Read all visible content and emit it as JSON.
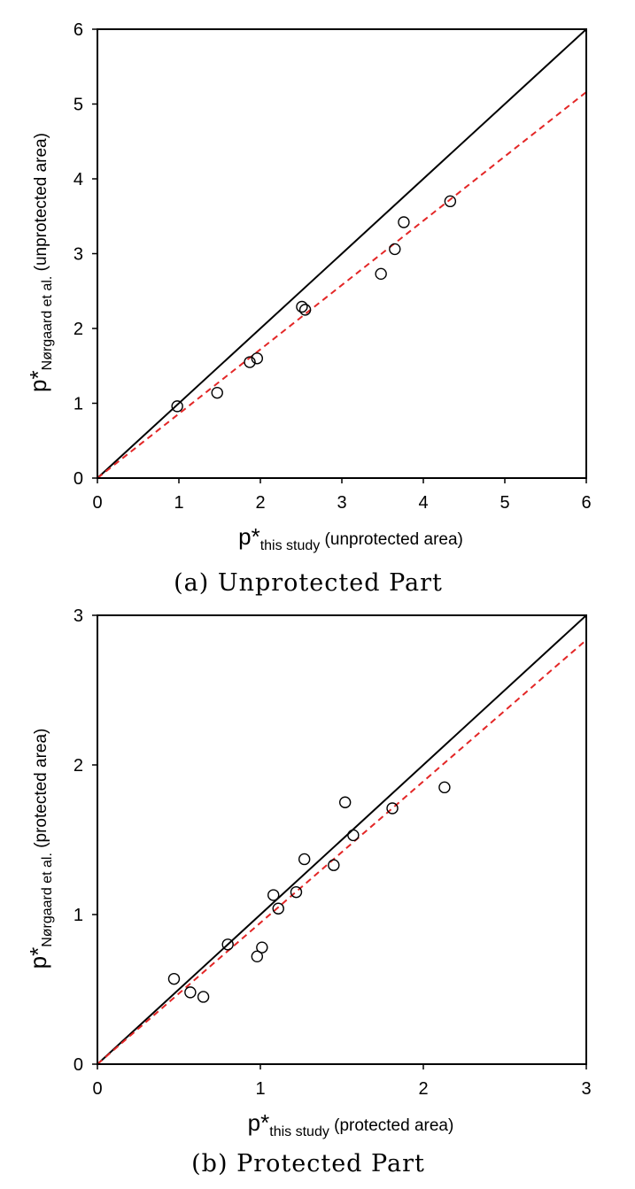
{
  "chart_data": [
    {
      "type": "scatter",
      "caption": "(a) Unprotected Part",
      "xlabel": {
        "main": "p*",
        "sub": "this study",
        "suffix": " (unprotected area)"
      },
      "ylabel": {
        "main": "p*",
        "sub": "Nørgaard et al.",
        "suffix": " (unprotected area)"
      },
      "xlim": [
        0,
        6
      ],
      "ylim": [
        0,
        6
      ],
      "xticks": [
        "0",
        "1",
        "2",
        "3",
        "4",
        "5",
        "6"
      ],
      "yticks": [
        "0",
        "1",
        "2",
        "3",
        "4",
        "5",
        "6"
      ],
      "grid": false,
      "points": [
        [
          0.98,
          0.96
        ],
        [
          1.47,
          1.14
        ],
        [
          1.87,
          1.55
        ],
        [
          1.96,
          1.6
        ],
        [
          2.51,
          2.29
        ],
        [
          2.55,
          2.25
        ],
        [
          3.48,
          2.73
        ],
        [
          3.65,
          3.06
        ],
        [
          3.76,
          3.42
        ],
        [
          4.33,
          3.7
        ]
      ],
      "lines": [
        {
          "name": "line of equality",
          "slope": 1.0,
          "style": "solid",
          "color": "#000000"
        },
        {
          "name": "fit",
          "slope": 0.86,
          "style": "dashed",
          "color": "#e32626"
        }
      ]
    },
    {
      "type": "scatter",
      "caption": "(b) Protected Part",
      "xlabel": {
        "main": "p*",
        "sub": "this study",
        "suffix": " (protected area)"
      },
      "ylabel": {
        "main": "p*",
        "sub": "Nørgaard et al.",
        "suffix": " (protected area)"
      },
      "xlim": [
        0,
        3
      ],
      "ylim": [
        0,
        3
      ],
      "xticks": [
        "0",
        "1",
        "2",
        "3"
      ],
      "yticks": [
        "0",
        "1",
        "2",
        "3"
      ],
      "grid": false,
      "points": [
        [
          0.47,
          0.57
        ],
        [
          0.57,
          0.48
        ],
        [
          0.65,
          0.45
        ],
        [
          0.8,
          0.8
        ],
        [
          0.98,
          0.72
        ],
        [
          1.01,
          0.78
        ],
        [
          1.08,
          1.13
        ],
        [
          1.11,
          1.04
        ],
        [
          1.22,
          1.15
        ],
        [
          1.27,
          1.37
        ],
        [
          1.45,
          1.33
        ],
        [
          1.52,
          1.75
        ],
        [
          1.57,
          1.53
        ],
        [
          1.81,
          1.71
        ],
        [
          2.13,
          1.85
        ]
      ],
      "lines": [
        {
          "name": "line of equality",
          "slope": 1.0,
          "style": "solid",
          "color": "#000000"
        },
        {
          "name": "fit",
          "slope": 0.945,
          "style": "dashed",
          "color": "#e32626"
        }
      ]
    }
  ]
}
